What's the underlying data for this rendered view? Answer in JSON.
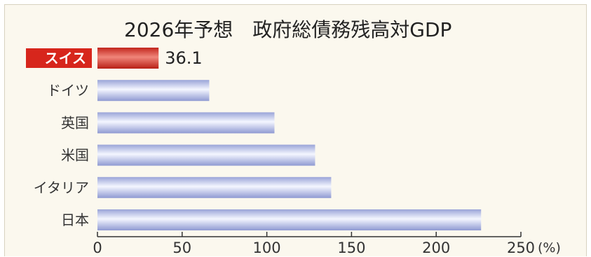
{
  "chart_data": {
    "type": "bar",
    "orientation": "horizontal",
    "title": "2026年予想　政府総債務残高対GDP",
    "categories": [
      "スイス",
      "ドイツ",
      "英国",
      "米国",
      "イタリア",
      "日本"
    ],
    "values": [
      36.1,
      66,
      104.5,
      128.5,
      138,
      226.5
    ],
    "highlight_category": "スイス",
    "highlight_value_label": "36.1",
    "xlim": [
      0,
      250
    ],
    "xticks": [
      0,
      50,
      100,
      150,
      200,
      250
    ],
    "x_unit": "(%)",
    "xlabel": "",
    "ylabel": "",
    "grid": false,
    "legend": "none"
  },
  "colors": {
    "background": "#fbf8ee",
    "bar_main": "#b4bde6",
    "bar_highlight": "#d8332a",
    "highlight_label_bg": "#d7261c",
    "axis": "#333333"
  }
}
